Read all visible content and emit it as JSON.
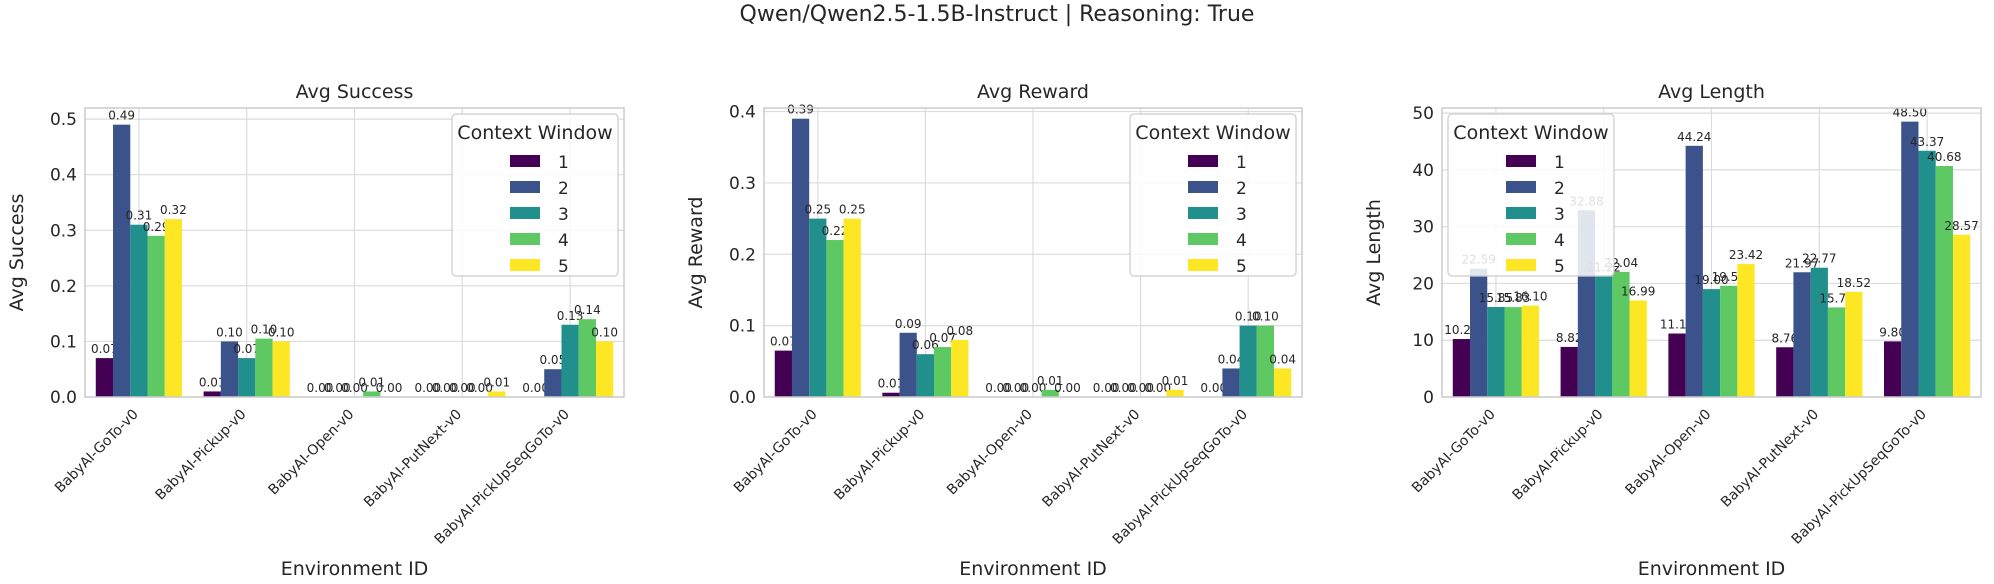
{
  "suptitle": "Qwen/Qwen2.5-1.5B-Instruct | Reasoning: True",
  "colors": [
    "#440154",
    "#3b528b",
    "#21908d",
    "#5ec962",
    "#fde725"
  ],
  "chart_data": [
    {
      "type": "bar",
      "title": "Avg Success",
      "xlabel": "Environment ID",
      "ylabel": "Avg Success",
      "ylim": [
        0,
        0.52
      ],
      "yticks": [
        0.0,
        0.1,
        0.2,
        0.3,
        0.4,
        0.5
      ],
      "ytick_labels": [
        "0.0",
        "0.1",
        "0.2",
        "0.3",
        "0.4",
        "0.5"
      ],
      "categories": [
        "BabyAI-GoTo-v0",
        "BabyAI-Pickup-v0",
        "BabyAI-Open-v0",
        "BabyAI-PutNext-v0",
        "BabyAI-PickUpSeqGoTo-v0"
      ],
      "legend_title": "Context Window",
      "legend_position": "upper right",
      "grid": true,
      "series": [
        {
          "name": "1",
          "values": [
            0.07,
            0.01,
            0.0,
            0.0,
            0.0
          ],
          "labels": [
            "0.07",
            "0.01",
            "0.00",
            "0.00",
            "0.00"
          ]
        },
        {
          "name": "2",
          "values": [
            0.49,
            0.1,
            0.0,
            0.0,
            0.05
          ],
          "labels": [
            "0.49",
            "0.10",
            "0.00",
            "0.00",
            "0.05"
          ]
        },
        {
          "name": "3",
          "values": [
            0.31,
            0.07,
            0.0,
            0.0,
            0.13
          ],
          "labels": [
            "0.31",
            "0.07",
            "0.00",
            "0.00",
            "0.13"
          ]
        },
        {
          "name": "4",
          "values": [
            0.29,
            0.105,
            0.01,
            0.0,
            0.14
          ],
          "labels": [
            "0.29",
            "0.10",
            "0.01",
            "0.00",
            "0.14"
          ]
        },
        {
          "name": "5",
          "values": [
            0.32,
            0.1,
            0.0,
            0.01,
            0.1
          ],
          "labels": [
            "0.32",
            "0.10",
            "0.00",
            "0.01",
            "0.10"
          ]
        }
      ]
    },
    {
      "type": "bar",
      "title": "Avg Reward",
      "xlabel": "Environment ID",
      "ylabel": "Avg Reward",
      "ylim": [
        0,
        0.405
      ],
      "yticks": [
        0.0,
        0.1,
        0.2,
        0.3,
        0.4
      ],
      "ytick_labels": [
        "0.0",
        "0.1",
        "0.2",
        "0.3",
        "0.4"
      ],
      "categories": [
        "BabyAI-GoTo-v0",
        "BabyAI-Pickup-v0",
        "BabyAI-Open-v0",
        "BabyAI-PutNext-v0",
        "BabyAI-PickUpSeqGoTo-v0"
      ],
      "legend_title": "Context Window",
      "legend_position": "upper right",
      "grid": true,
      "series": [
        {
          "name": "1",
          "values": [
            0.065,
            0.006,
            0.0,
            0.0,
            0.0
          ],
          "labels": [
            "0.07",
            "0.01",
            "0.00",
            "0.00",
            "0.00"
          ]
        },
        {
          "name": "2",
          "values": [
            0.39,
            0.09,
            0.0,
            0.0,
            0.04
          ],
          "labels": [
            "0.39",
            "0.09",
            "0.00",
            "0.00",
            "0.04"
          ]
        },
        {
          "name": "3",
          "values": [
            0.25,
            0.06,
            0.0,
            0.0,
            0.1
          ],
          "labels": [
            "0.25",
            "0.06",
            "0.00",
            "0.00",
            "0.10"
          ]
        },
        {
          "name": "4",
          "values": [
            0.22,
            0.07,
            0.01,
            0.0,
            0.1
          ],
          "labels": [
            "0.22",
            "0.07",
            "0.01",
            "0.00",
            "0.10"
          ]
        },
        {
          "name": "5",
          "values": [
            0.25,
            0.08,
            0.0,
            0.01,
            0.04
          ],
          "labels": [
            "0.25",
            "0.08",
            "0.00",
            "0.01",
            "0.04"
          ]
        }
      ]
    },
    {
      "type": "bar",
      "title": "Avg Length",
      "xlabel": "Environment ID",
      "ylabel": "Avg Length",
      "ylim": [
        0,
        50.9
      ],
      "yticks": [
        0,
        10,
        20,
        30,
        40,
        50
      ],
      "ytick_labels": [
        "0",
        "10",
        "20",
        "30",
        "40",
        "50"
      ],
      "categories": [
        "BabyAI-GoTo-v0",
        "BabyAI-Pickup-v0",
        "BabyAI-Open-v0",
        "BabyAI-PutNext-v0",
        "BabyAI-PickUpSeqGoTo-v0"
      ],
      "legend_title": "Context Window",
      "legend_position": "upper left",
      "grid": true,
      "series": [
        {
          "name": "1",
          "values": [
            10.21,
            8.82,
            11.18,
            8.76,
            9.8
          ],
          "labels": [
            "10.21",
            "8.82",
            "11.18",
            "8.76",
            "9.80"
          ]
        },
        {
          "name": "2",
          "values": [
            22.59,
            32.88,
            44.24,
            21.97,
            48.5
          ],
          "labels": [
            "22.59",
            "32.88",
            "44.24",
            "21.97",
            "48.50"
          ]
        },
        {
          "name": "3",
          "values": [
            15.85,
            21.22,
            19.0,
            22.77,
            43.37
          ],
          "labels": [
            "15.85",
            "21.22",
            "19.00",
            "22.77",
            "43.37"
          ]
        },
        {
          "name": "4",
          "values": [
            15.83,
            22.04,
            19.59,
            15.78,
            40.68
          ],
          "labels": [
            "15.83",
            "22.04",
            "19.59",
            "15.78",
            "40.68"
          ]
        },
        {
          "name": "5",
          "values": [
            16.1,
            16.99,
            23.42,
            18.52,
            28.57
          ],
          "labels": [
            "16.10",
            "16.99",
            "23.42",
            "18.52",
            "28.57"
          ]
        }
      ]
    }
  ]
}
